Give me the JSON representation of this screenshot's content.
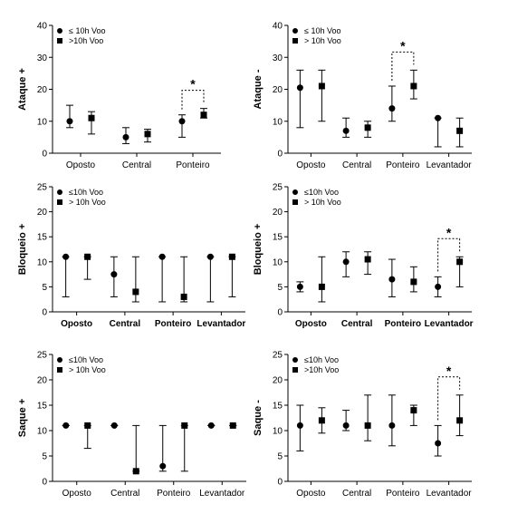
{
  "figure": {
    "legend_symbols": {
      "le": "circle",
      "gt": "square"
    }
  },
  "chart_data": [
    {
      "type": "scatter",
      "ylabel": "Ataque +",
      "ylim": [
        0,
        40
      ],
      "yticks": [
        "0",
        "10",
        "20",
        "30",
        "40"
      ],
      "categories": [
        "Oposto",
        "Central",
        "Ponteiro"
      ],
      "bold_categories": false,
      "legend": [
        "≤ 10h Voo",
        ">10h Voo"
      ],
      "series": [
        {
          "name": "≤ 10h Voo",
          "marker": "circle",
          "values": [
            10,
            5,
            10
          ],
          "low": [
            8,
            3,
            5
          ],
          "high": [
            15,
            8,
            12
          ]
        },
        {
          "name": ">10h Voo",
          "marker": "square",
          "values": [
            11,
            6,
            12
          ],
          "low": [
            6,
            3.5,
            11
          ],
          "high": [
            13,
            7.5,
            14
          ]
        }
      ],
      "significance": [
        {
          "category": "Ponteiro",
          "label": "*"
        }
      ]
    },
    {
      "type": "scatter",
      "ylabel": "Ataque -",
      "ylim": [
        0,
        40
      ],
      "yticks": [
        "0",
        "10",
        "20",
        "30",
        "40"
      ],
      "categories": [
        "Oposto",
        "Central",
        "Ponteiro",
        "Levantador"
      ],
      "bold_categories": false,
      "legend": [
        "≤ 10h Voo",
        "> 10h Voo"
      ],
      "series": [
        {
          "name": "≤ 10h Voo",
          "marker": "circle",
          "values": [
            20.5,
            7,
            14,
            11
          ],
          "low": [
            8,
            5,
            10,
            2
          ],
          "high": [
            26,
            11,
            21,
            11
          ]
        },
        {
          "name": "> 10h Voo",
          "marker": "square",
          "values": [
            21,
            8,
            21,
            7
          ],
          "low": [
            10,
            5,
            17,
            2
          ],
          "high": [
            26,
            10,
            26,
            11
          ]
        }
      ],
      "significance": [
        {
          "category": "Ponteiro",
          "label": "*"
        }
      ]
    },
    {
      "type": "scatter",
      "ylabel": "Bloqueio +",
      "ylim": [
        0,
        25
      ],
      "yticks": [
        "0",
        "5",
        "10",
        "15",
        "20",
        "25"
      ],
      "categories": [
        "Oposto",
        "Central",
        "Ponteiro",
        "Levantador"
      ],
      "bold_categories": true,
      "legend": [
        "≤10h Voo",
        "> 10h Voo"
      ],
      "series": [
        {
          "name": "≤10h Voo",
          "marker": "circle",
          "values": [
            11,
            7.5,
            11,
            11
          ],
          "low": [
            3,
            3,
            2,
            2
          ],
          "high": [
            11,
            11,
            11,
            11
          ]
        },
        {
          "name": "> 10h Voo",
          "marker": "square",
          "values": [
            11,
            4,
            3,
            11
          ],
          "low": [
            6.5,
            2,
            2,
            3
          ],
          "high": [
            11,
            11,
            11,
            11
          ]
        }
      ],
      "significance": []
    },
    {
      "type": "scatter",
      "ylabel": "Bloqueio +",
      "ylim": [
        0,
        25
      ],
      "yticks": [
        "0",
        "5",
        "10",
        "15",
        "20",
        "25"
      ],
      "categories": [
        "Oposto",
        "Central",
        "Ponteiro",
        "Levantador"
      ],
      "bold_categories": true,
      "legend": [
        "≤10h Voo",
        "> 10h Voo"
      ],
      "series": [
        {
          "name": "≤10h Voo",
          "marker": "circle",
          "values": [
            5,
            10,
            6.5,
            5
          ],
          "low": [
            4,
            7,
            3,
            3
          ],
          "high": [
            6,
            12,
            10.5,
            7
          ]
        },
        {
          "name": "> 10h Voo",
          "marker": "square",
          "values": [
            5,
            10.5,
            6,
            10
          ],
          "low": [
            2,
            7.5,
            4,
            5
          ],
          "high": [
            11,
            12,
            9,
            11
          ]
        }
      ],
      "significance": [
        {
          "category": "Levantador",
          "label": "*"
        }
      ]
    },
    {
      "type": "scatter",
      "ylabel": "Saque +",
      "ylim": [
        0,
        25
      ],
      "yticks": [
        "0",
        "5",
        "10",
        "15",
        "20",
        "25"
      ],
      "categories": [
        "Oposto",
        "Central",
        "Ponteiro",
        "Levantador"
      ],
      "bold_categories": false,
      "legend": [
        "≤10h Voo",
        "> 10h Voo"
      ],
      "series": [
        {
          "name": "≤10h Voo",
          "marker": "circle",
          "values": [
            11,
            11,
            3,
            11
          ],
          "low": [
            11,
            11,
            2,
            11
          ],
          "high": [
            11,
            11,
            11,
            11
          ]
        },
        {
          "name": "> 10h Voo",
          "marker": "square",
          "values": [
            11,
            2,
            11,
            11
          ],
          "low": [
            6.5,
            2,
            2,
            11
          ],
          "high": [
            11,
            11,
            11,
            11
          ]
        }
      ],
      "significance": []
    },
    {
      "type": "scatter",
      "ylabel": "Saque -",
      "ylim": [
        0,
        25
      ],
      "yticks": [
        "0",
        "5",
        "10",
        "15",
        "20",
        "25"
      ],
      "categories": [
        "Oposto",
        "Central",
        "Ponteiro",
        "Levantador"
      ],
      "bold_categories": false,
      "legend": [
        "≤10h Voo",
        ">10h Voo"
      ],
      "series": [
        {
          "name": "≤10h Voo",
          "marker": "circle",
          "values": [
            11,
            11,
            11,
            7.5
          ],
          "low": [
            6,
            10,
            7,
            5
          ],
          "high": [
            15,
            14,
            17,
            11
          ]
        },
        {
          "name": ">10h Voo",
          "marker": "square",
          "values": [
            12,
            11,
            14,
            12
          ],
          "low": [
            9.5,
            8,
            11,
            9
          ],
          "high": [
            14.5,
            17,
            15,
            17
          ]
        }
      ],
      "significance": [
        {
          "category": "Levantador",
          "label": "*"
        }
      ]
    }
  ]
}
